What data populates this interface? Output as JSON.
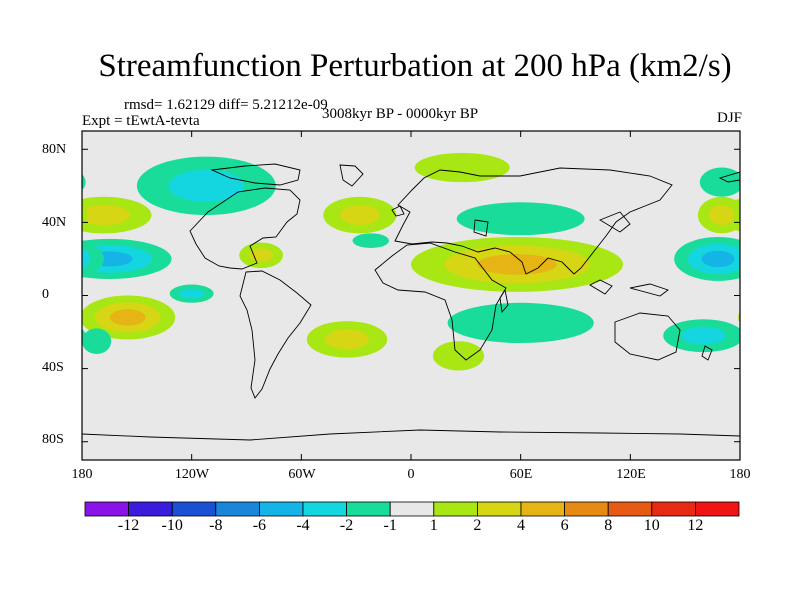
{
  "title": "Streamfunction Perturbation at 200 hPa (km2/s)",
  "stats": "rmsd= 1.62129 diff= 5.21212e-09",
  "expt": "Expt = tEwtA-tevta",
  "period": "3008kyr BP - 0000kyr BP",
  "season": "DJF",
  "chart_data": {
    "type": "heatmap",
    "projection": "cylindrical-equidistant",
    "xlim": [
      -180,
      180
    ],
    "ylim": [
      -90,
      90
    ],
    "x_ticks": [
      "180",
      "120W",
      "60W",
      "0",
      "60E",
      "120E",
      "180"
    ],
    "y_ticks": [
      "80N",
      "40N",
      "0",
      "40S",
      "80S"
    ],
    "y_tick_values": [
      80,
      40,
      0,
      -40,
      -80
    ],
    "x_tick_values": [
      -180,
      -120,
      -60,
      0,
      60,
      120,
      180
    ],
    "colorbar": {
      "labels": [
        "-12",
        "-10",
        "-8",
        "-6",
        "-4",
        "-2",
        "-1",
        "1",
        "2",
        "4",
        "6",
        "8",
        "10",
        "12"
      ],
      "colors": [
        "#8a14e8",
        "#3a1cdc",
        "#1a50d4",
        "#1a86da",
        "#14b4e6",
        "#14d6e0",
        "#1adc9a",
        "#e8e8e8",
        "#a8e614",
        "#d6d614",
        "#e6b414",
        "#e68a14",
        "#e65a14",
        "#e62a14",
        "#f01414"
      ]
    },
    "anomalies": [
      {
        "lon": -168,
        "lat": 44,
        "rx": 26,
        "ry": 10,
        "value": 3
      },
      {
        "lon": -165,
        "lat": 20,
        "rx": 34,
        "ry": 11,
        "value": -5
      },
      {
        "lon": -155,
        "lat": -12,
        "rx": 26,
        "ry": 12,
        "value": 4
      },
      {
        "lon": -112,
        "lat": 60,
        "rx": 38,
        "ry": 16,
        "value": -2
      },
      {
        "lon": -120,
        "lat": 1,
        "rx": 12,
        "ry": 5,
        "value": -3
      },
      {
        "lon": -82,
        "lat": 22,
        "rx": 12,
        "ry": 7,
        "value": 2
      },
      {
        "lon": -35,
        "lat": -24,
        "rx": 22,
        "ry": 10,
        "value": 3
      },
      {
        "lon": -28,
        "lat": 44,
        "rx": 20,
        "ry": 10,
        "value": 2
      },
      {
        "lon": -22,
        "lat": 30,
        "rx": 10,
        "ry": 4,
        "value": -1
      },
      {
        "lon": 28,
        "lat": 70,
        "rx": 26,
        "ry": 8,
        "value": 1
      },
      {
        "lon": 60,
        "lat": 42,
        "rx": 35,
        "ry": 9,
        "value": -1
      },
      {
        "lon": 58,
        "lat": 17,
        "rx": 58,
        "ry": 15,
        "value": 4
      },
      {
        "lon": 60,
        "lat": -15,
        "rx": 40,
        "ry": 11,
        "value": -1
      },
      {
        "lon": 26,
        "lat": -33,
        "rx": 14,
        "ry": 8,
        "value": 1
      },
      {
        "lon": 170,
        "lat": 62,
        "rx": 12,
        "ry": 8,
        "value": -1
      },
      {
        "lon": 170,
        "lat": 44,
        "rx": 13,
        "ry": 10,
        "value": 2
      },
      {
        "lon": 168,
        "lat": 20,
        "rx": 24,
        "ry": 12,
        "value": -5
      },
      {
        "lon": 160,
        "lat": -22,
        "rx": 22,
        "ry": 9,
        "value": -2
      },
      {
        "lon": -172,
        "lat": -25,
        "rx": 8,
        "ry": 7,
        "value": -1
      }
    ]
  }
}
